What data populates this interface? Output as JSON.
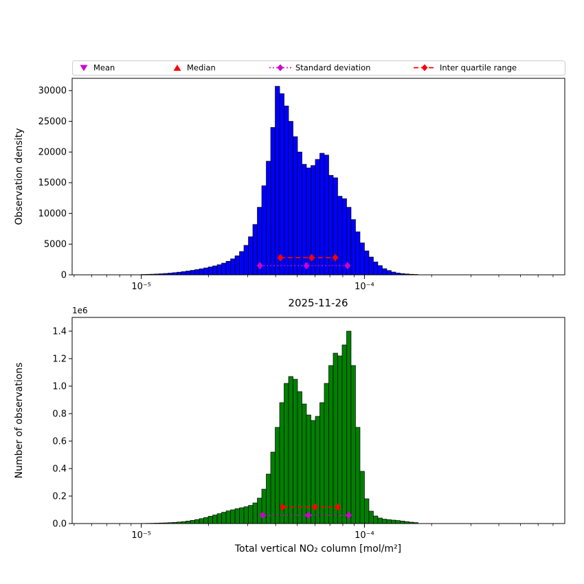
{
  "figure": {
    "legend": {
      "items": [
        {
          "label": "Mean",
          "marker": "triangle-down",
          "color": "#cc00cc",
          "line": "none"
        },
        {
          "label": "Median",
          "marker": "triangle-up",
          "color": "#ff0000",
          "line": "none"
        },
        {
          "label": "Standard deviation",
          "marker": "diamond",
          "color": "#cc00cc",
          "line": "dotted"
        },
        {
          "label": "Inter quartile range",
          "marker": "diamond",
          "color": "#ff0000",
          "line": "dashed"
        }
      ]
    }
  },
  "chart_data": [
    {
      "type": "bar",
      "name": "observation-density-histogram",
      "title": "",
      "ylabel": "Observation density",
      "bar_color": "#0000ff",
      "x_scale": "log",
      "xlim": [
        4.9e-06,
        0.00079
      ],
      "ylim": [
        0,
        32000
      ],
      "grid": false,
      "yticks": [
        {
          "v": 0,
          "label": "0"
        },
        {
          "v": 5000,
          "label": "5000"
        },
        {
          "v": 10000,
          "label": "10000"
        },
        {
          "v": 15000,
          "label": "15000"
        },
        {
          "v": 20000,
          "label": "20000"
        },
        {
          "v": 25000,
          "label": "25000"
        },
        {
          "v": 30000,
          "label": "30000"
        }
      ],
      "xticks": [
        {
          "v": 1e-05,
          "label": "10⁻⁵"
        },
        {
          "v": 0.0001,
          "label": "10⁻⁴"
        }
      ],
      "bins": {
        "log10_start": -5.0,
        "log10_width": 0.02
      },
      "values": [
        60,
        80,
        100,
        130,
        170,
        220,
        280,
        350,
        430,
        520,
        620,
        730,
        850,
        980,
        1120,
        1280,
        1450,
        1650,
        1900,
        2200,
        2600,
        3100,
        3800,
        4800,
        6200,
        8200,
        11000,
        14500,
        18500,
        24000,
        30700,
        29500,
        27500,
        25000,
        22500,
        20000,
        18000,
        17400,
        17800,
        18800,
        19800,
        19500,
        16200,
        15800,
        12800,
        12400,
        11000,
        9000,
        7000,
        5200,
        3900,
        2900,
        2100,
        1500,
        1000,
        700,
        450,
        300,
        200,
        140,
        90,
        60
      ],
      "errorbars": [
        {
          "name": "inter-quartile-range",
          "color": "#ff0000",
          "style": "dashed",
          "y": 2800,
          "x_left": 4.2e-05,
          "x_mid": 5.8e-05,
          "x_right": 7.4e-05
        },
        {
          "name": "standard-deviation",
          "color": "#cc00cc",
          "style": "dotted",
          "y": 1500,
          "x_left": 3.4e-05,
          "x_mid": 5.5e-05,
          "x_right": 8.4e-05
        }
      ]
    },
    {
      "type": "bar",
      "name": "observation-count-histogram",
      "title": "2025-11-26",
      "ylabel": "Number of observations",
      "xlabel": "Total vertical NO₂ column [mol/m²]",
      "y_offset_label": "1e6",
      "bar_color": "#008000",
      "x_scale": "log",
      "xlim": [
        4.9e-06,
        0.00079
      ],
      "ylim": [
        0,
        1500000
      ],
      "grid": false,
      "yticks": [
        {
          "v": 0,
          "label": "0.0"
        },
        {
          "v": 200000,
          "label": "0.2"
        },
        {
          "v": 400000,
          "label": "0.4"
        },
        {
          "v": 600000,
          "label": "0.6"
        },
        {
          "v": 800000,
          "label": "0.8"
        },
        {
          "v": 1000000,
          "label": "1.0"
        },
        {
          "v": 1200000,
          "label": "1.2"
        },
        {
          "v": 1400000,
          "label": "1.4"
        }
      ],
      "xticks": [
        {
          "v": 1e-05,
          "label": "10⁻⁵"
        },
        {
          "v": 0.0001,
          "label": "10⁻⁴"
        }
      ],
      "bins": {
        "log10_start": -5.0,
        "log10_width": 0.02
      },
      "values": [
        1000,
        1500,
        2000,
        2800,
        3800,
        5000,
        6500,
        8500,
        11000,
        14000,
        18000,
        23000,
        29000,
        36000,
        44000,
        53000,
        62000,
        72000,
        82000,
        92000,
        100000,
        108000,
        115000,
        122000,
        132000,
        150000,
        185000,
        250000,
        360000,
        520000,
        700000,
        880000,
        1020000,
        1070000,
        1050000,
        960000,
        870000,
        790000,
        750000,
        780000,
        880000,
        1020000,
        1150000,
        1240000,
        1220000,
        1300000,
        1400000,
        1150000,
        700000,
        380000,
        180000,
        90000,
        55000,
        40000,
        32000,
        28000,
        25000,
        22000,
        18000,
        14000,
        10000,
        7000
      ],
      "errorbars": [
        {
          "name": "inter-quartile-range",
          "color": "#ff0000",
          "style": "dashed",
          "y": 120000,
          "x_left": 4.3e-05,
          "x_mid": 6e-05,
          "x_right": 7.6e-05
        },
        {
          "name": "standard-deviation",
          "color": "#cc00cc",
          "style": "dotted",
          "y": 60000,
          "x_left": 3.5e-05,
          "x_mid": 5.6e-05,
          "x_right": 8.5e-05
        }
      ]
    }
  ]
}
